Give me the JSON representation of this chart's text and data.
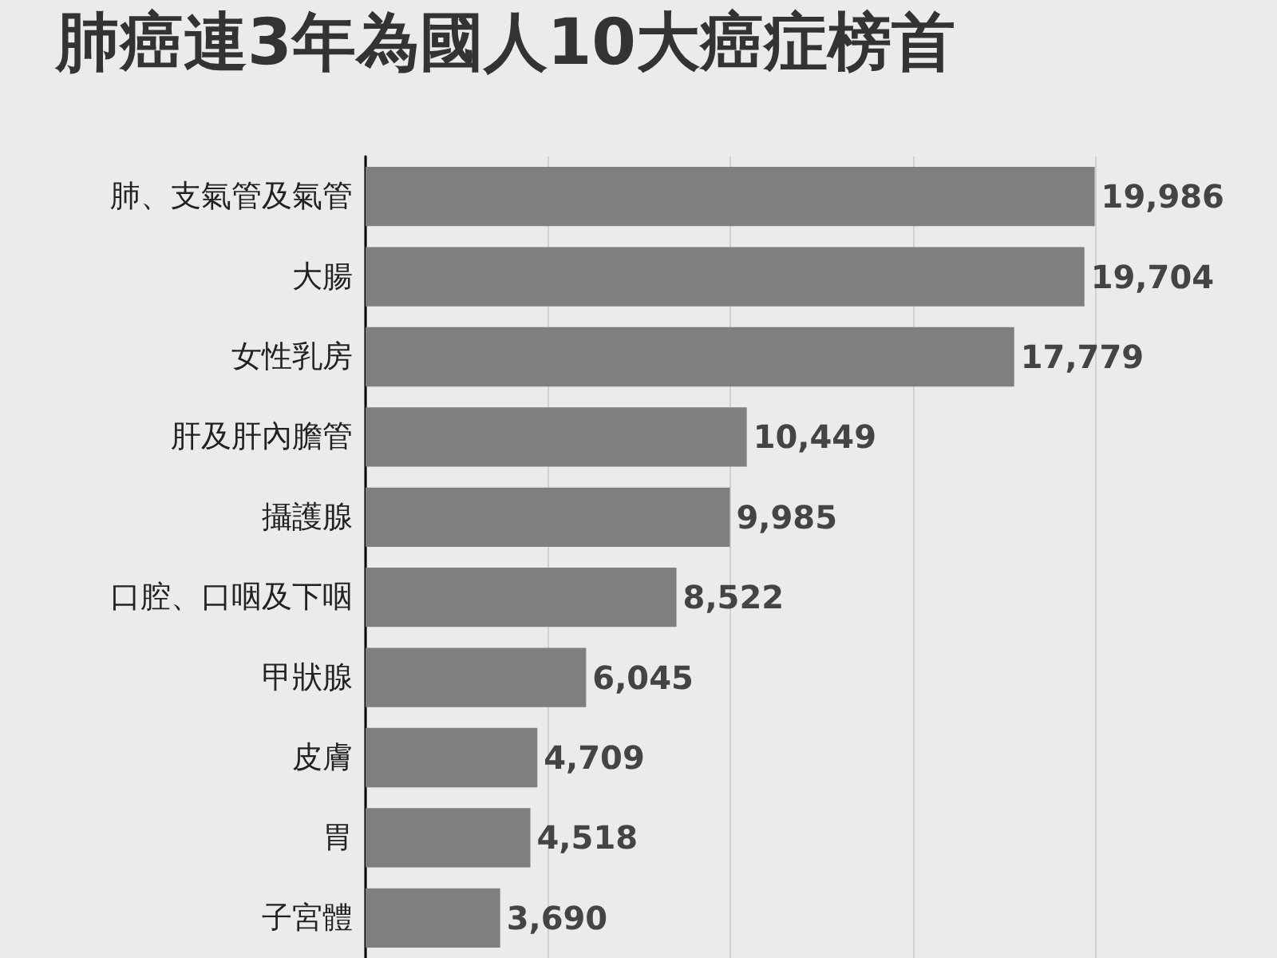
{
  "chart_data": {
    "type": "bar",
    "title": "肺癌連3年為國人10大癌症榜首",
    "orientation": "horizontal",
    "categories": [
      "肺、支氣管及氣管",
      "大腸",
      "女性乳房",
      "肝及肝內膽管",
      "攝護腺",
      "口腔、口咽及下咽",
      "甲狀腺",
      "皮膚",
      "胃",
      "子宮體"
    ],
    "values": [
      19986,
      19704,
      17779,
      10449,
      9985,
      8522,
      6045,
      4709,
      4518,
      3690
    ],
    "color": "#7f7f7f",
    "value_labels": [
      "19,986",
      "19,704",
      "17,779",
      "10,449",
      "9,985",
      "8,522",
      "6,045",
      "4,709",
      "4,518",
      "3,690"
    ],
    "grid": "x",
    "tick_labels": "y"
  }
}
